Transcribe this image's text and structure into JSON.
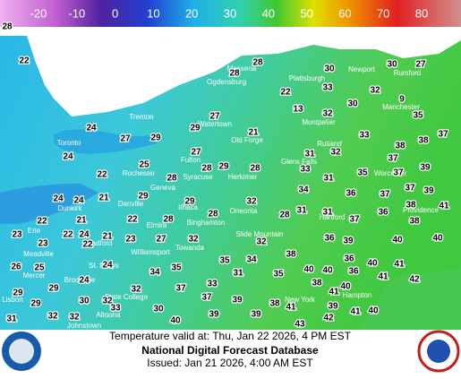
{
  "legend": {
    "ticks": [
      -20,
      -10,
      0,
      10,
      20,
      30,
      40,
      50,
      60,
      70,
      80
    ]
  },
  "temperatures": [
    28,
    22,
    28,
    30,
    30,
    27,
    28,
    22,
    33,
    32,
    30,
    9,
    13,
    32,
    35,
    27,
    24,
    27,
    29,
    29,
    21,
    33,
    38,
    38,
    37,
    24,
    27,
    25,
    31,
    32,
    37,
    35,
    29,
    28,
    28,
    22,
    28,
    33,
    31,
    37,
    39,
    37,
    34,
    36,
    37,
    39,
    24,
    24,
    21,
    29,
    32,
    29,
    41,
    31,
    31,
    36,
    38,
    28,
    28,
    37,
    22,
    21,
    22,
    28,
    38,
    23,
    22,
    24,
    21,
    23,
    27,
    32,
    32,
    36,
    39,
    40,
    40,
    23,
    22,
    38,
    40,
    26,
    25,
    24,
    35,
    34,
    36,
    41,
    35,
    34,
    31,
    35,
    40,
    40,
    36,
    41,
    42,
    29,
    24,
    29,
    32,
    37,
    33,
    38,
    40,
    37,
    32,
    39,
    30,
    29,
    38,
    41,
    32,
    32,
    33,
    30,
    39,
    41,
    39,
    41,
    40,
    39,
    31,
    40,
    42,
    43
  ],
  "cities": [
    "Massena",
    "Ogdensburg",
    "Plattsburgh",
    "Newport",
    "Rumford",
    "Trenton",
    "Watertown",
    "Old Forge",
    "Montpelier",
    "Toronto",
    "Rutland",
    "Fulton",
    "Rochester",
    "Syracuse",
    "Herkimer",
    "Glens Falls",
    "Geneva",
    "Dunkirk",
    "Danville",
    "Ithaca",
    "Oneonta",
    "Binghamton",
    "Elmira",
    "Towanda",
    "Slide Mountain",
    "Bradford",
    "Meadville",
    "Mercer",
    "Brookville",
    "St. Marys",
    "Williamsport",
    "State College",
    "Altoona",
    "Johnstown",
    "Erie",
    "Lisbon",
    "Manchester",
    "Worcester",
    "Hartford",
    "Providence",
    "New York",
    "Hampton"
  ],
  "footer": {
    "valid": "Temperature valid at: Thu, Jan 22 2026, 4 PM EST",
    "title": "National Digital Forecast Database",
    "issued": "Issued: Jan 21 2026, 4:00 AM EST"
  }
}
